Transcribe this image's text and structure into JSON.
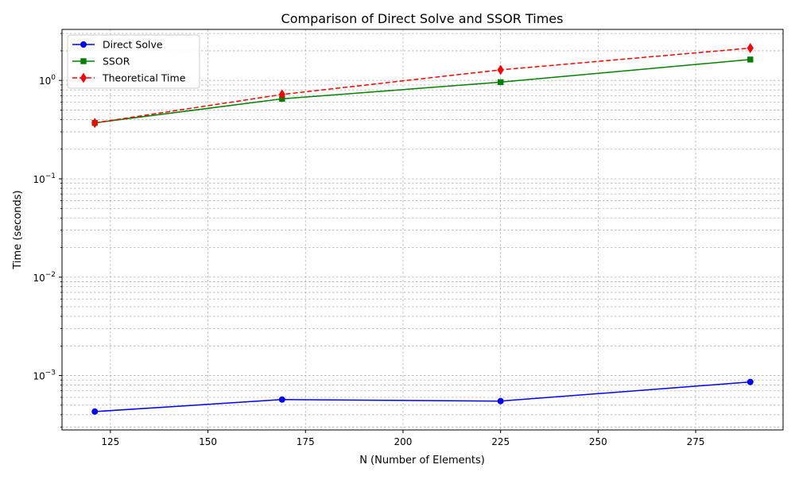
{
  "chart_data": {
    "type": "line",
    "title": "Comparison of Direct Solve and SSOR Times",
    "xlabel": "N (Number of Elements)",
    "ylabel": "Time (seconds)",
    "yscale": "log",
    "xlim": [
      112.6,
      297.4
    ],
    "ylim": [
      0.00028,
      3.3
    ],
    "xticks": [
      125,
      150,
      175,
      200,
      225,
      250,
      275
    ],
    "xtick_labels": [
      "125",
      "150",
      "175",
      "200",
      "225",
      "250",
      "275"
    ],
    "yticks": [
      0.001,
      0.01,
      0.1,
      1
    ],
    "ytick_labels": [
      {
        "base": "10",
        "exp": "−3"
      },
      {
        "base": "10",
        "exp": "−2"
      },
      {
        "base": "10",
        "exp": "−1"
      },
      {
        "base": "10",
        "exp": "0"
      }
    ],
    "grid": true,
    "legend_position": "top-left",
    "x": [
      121,
      169,
      225,
      289
    ],
    "series": [
      {
        "name": "Direct Solve",
        "values": [
          0.00043,
          0.00057,
          0.00055,
          0.00086
        ],
        "color": "#0000ff",
        "marker": "circle",
        "linestyle": "solid"
      },
      {
        "name": "SSOR",
        "values": [
          0.37,
          0.65,
          0.96,
          1.63
        ],
        "color": "#008000",
        "marker": "square",
        "linestyle": "solid"
      },
      {
        "name": "Theoretical Time",
        "values": [
          0.37,
          0.72,
          1.28,
          2.13
        ],
        "color": "#ff0000",
        "marker": "diamond",
        "linestyle": "dashed"
      }
    ]
  }
}
